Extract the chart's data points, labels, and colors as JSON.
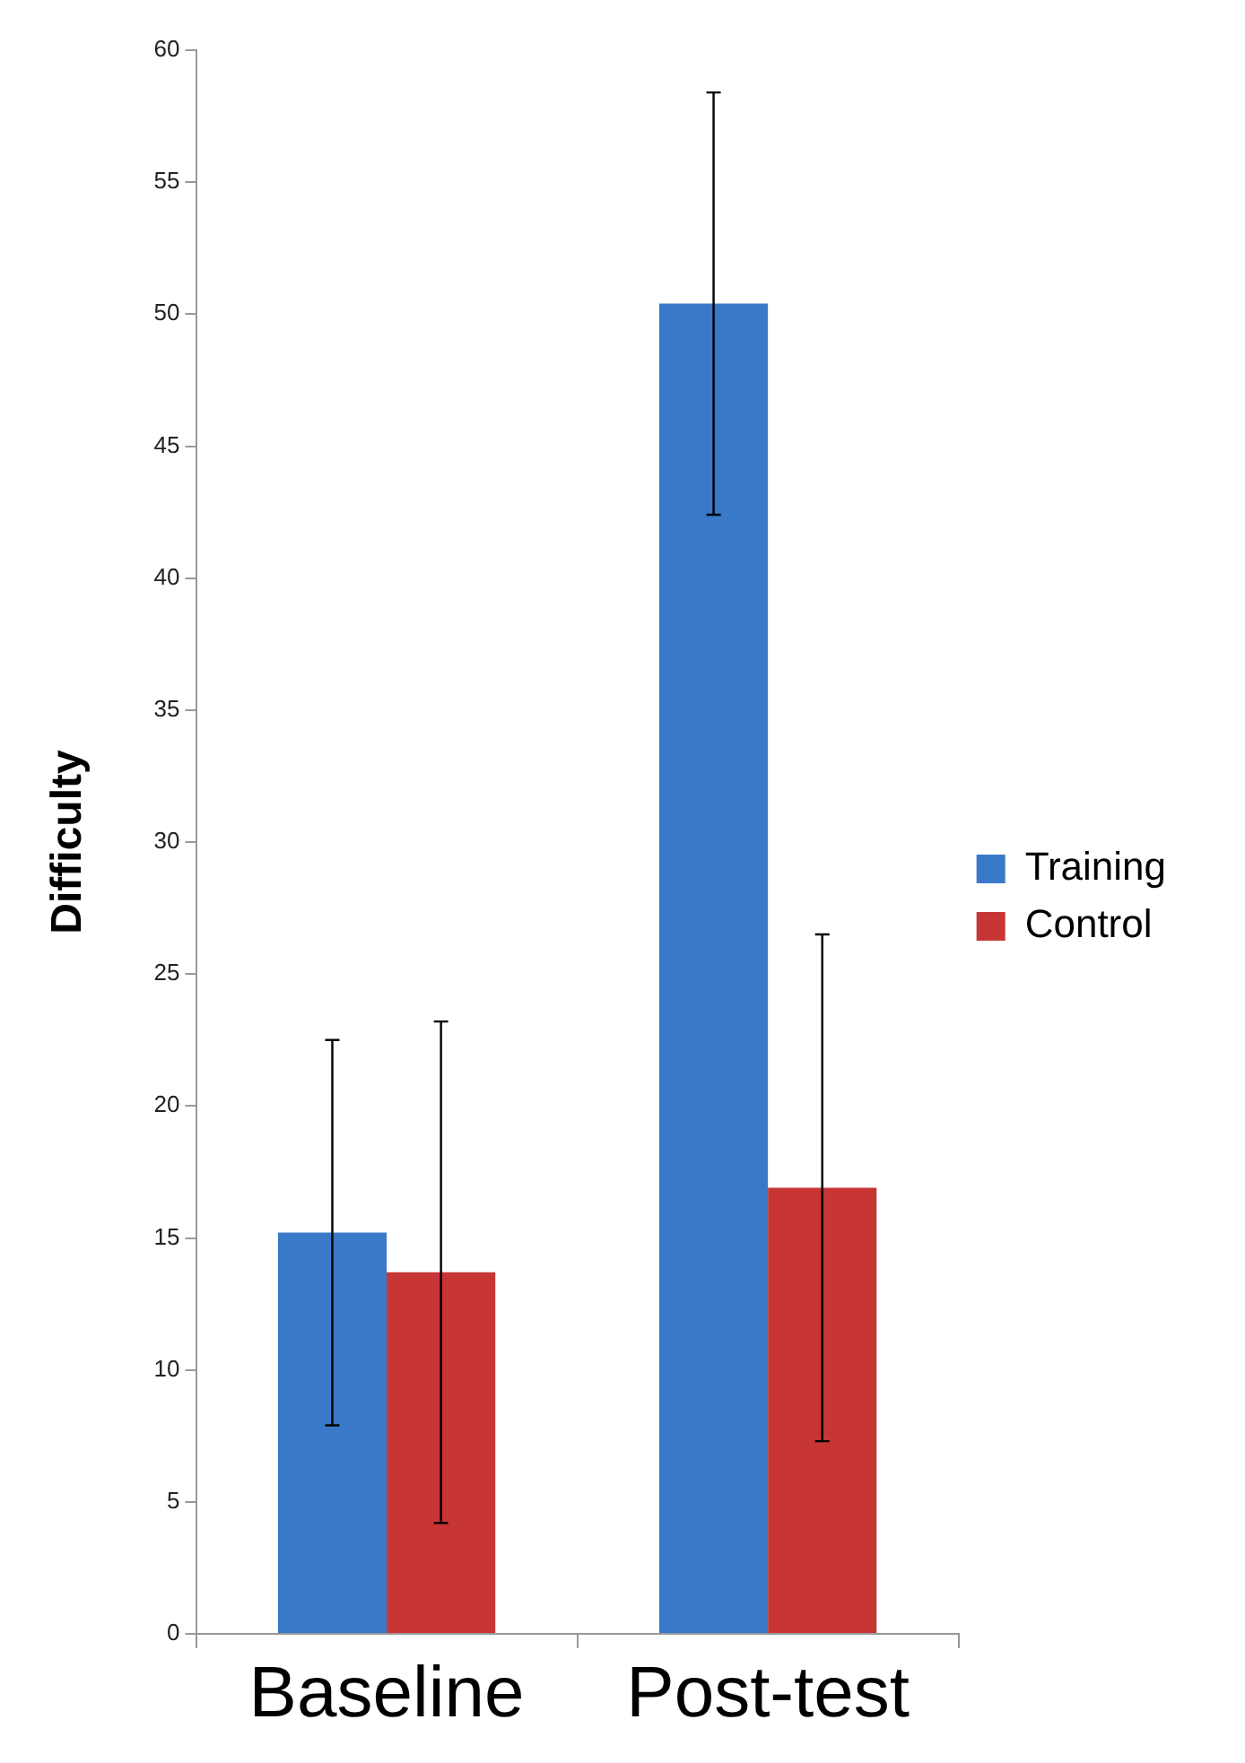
{
  "chart_data": {
    "type": "bar",
    "ylabel": "Difficulty",
    "categories": [
      "Baseline",
      "Post-test"
    ],
    "series": [
      {
        "name": "Training",
        "color": "#3a78c8",
        "values": [
          15.2,
          50.4
        ],
        "errors": [
          7.3,
          8
        ]
      },
      {
        "name": "Control",
        "color": "#c83535",
        "values": [
          13.7,
          16.9
        ],
        "errors": [
          9.5,
          9.6
        ]
      }
    ],
    "ylim": [
      0,
      60
    ],
    "yticks": [
      0,
      5,
      10,
      15,
      20,
      25,
      30,
      35,
      40,
      45,
      50,
      55,
      60
    ],
    "grid": false,
    "legend": "right"
  }
}
